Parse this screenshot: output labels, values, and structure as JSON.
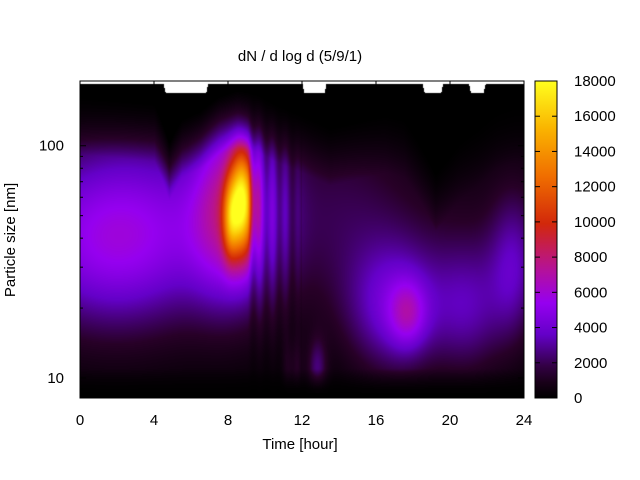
{
  "chart_data": {
    "type": "heatmap",
    "title": "dN / d log d (5/9/1)",
    "xlabel": "Time [hour]",
    "ylabel": "Particle size [nm]",
    "xlim": [
      0,
      24
    ],
    "ylim": [
      8.2,
      190
    ],
    "yscale": "log",
    "x_ticks": [
      0,
      4,
      8,
      12,
      16,
      20,
      24
    ],
    "y_ticks": [
      10,
      100
    ],
    "grid": false,
    "colorbar": {
      "range": [
        0,
        18000
      ],
      "ticks": [
        0,
        2000,
        4000,
        6000,
        8000,
        10000,
        12000,
        14000,
        16000,
        18000
      ],
      "colormap": "black-purple-red-orange-yellow"
    },
    "features": [
      {
        "t": 1.8,
        "d": 38,
        "dt": 3.5,
        "dd": 0.26,
        "value": 3800
      },
      {
        "t": 4.0,
        "d": 60,
        "dt": 5,
        "dd": 0.3,
        "value": 1500
      },
      {
        "t": 8.0,
        "d": 50,
        "dt": 1.4,
        "dd": 0.26,
        "value": 4500
      },
      {
        "t": 8.75,
        "d": 58,
        "dt": 0.45,
        "dd": 0.16,
        "value": 11500
      },
      {
        "t": 8.1,
        "d": 48,
        "dt": 0.3,
        "dd": 0.12,
        "value": 5500
      },
      {
        "t": 8.0,
        "d": 110,
        "dt": 1.1,
        "dd": 0.3,
        "value": 1500
      },
      {
        "t": 10.5,
        "d": 55,
        "dt": 1.0,
        "dd": 0.3,
        "value": 1500
      },
      {
        "t": 12.8,
        "d": 11,
        "dt": 0.35,
        "dd": 0.09,
        "value": 2200
      },
      {
        "t": 11.5,
        "d": 11,
        "dt": 0.35,
        "dd": 0.09,
        "value": 1200
      },
      {
        "t": 17.0,
        "d": 20,
        "dt": 1.8,
        "dd": 0.2,
        "value": 3600
      },
      {
        "t": 17.7,
        "d": 19,
        "dt": 0.7,
        "dd": 0.1,
        "value": 2800
      },
      {
        "t": 21.0,
        "d": 20,
        "dt": 1.4,
        "dd": 0.2,
        "value": 2500
      },
      {
        "t": 23.4,
        "d": 30,
        "dt": 0.9,
        "dd": 0.22,
        "value": 2500
      },
      {
        "t": 14.5,
        "d": 60,
        "dt": 2.5,
        "dd": 0.3,
        "value": 900
      }
    ],
    "background_level": 900,
    "upper_edge": [
      [
        0,
        150
      ],
      [
        2,
        145
      ],
      [
        4,
        140
      ],
      [
        4.8,
        95
      ],
      [
        5.5,
        120
      ],
      [
        6.5,
        130
      ],
      [
        7.5,
        150
      ],
      [
        8.5,
        160
      ],
      [
        9.5,
        155
      ],
      [
        10.5,
        140
      ],
      [
        11.5,
        130
      ],
      [
        12.5,
        120
      ],
      [
        13.5,
        110
      ],
      [
        14.5,
        115
      ],
      [
        15.5,
        120
      ],
      [
        16.5,
        125
      ],
      [
        17.5,
        120
      ],
      [
        18.5,
        90
      ],
      [
        19.2,
        70
      ],
      [
        19.8,
        80
      ],
      [
        20.5,
        95
      ],
      [
        21.5,
        110
      ],
      [
        22.5,
        130
      ],
      [
        23.5,
        140
      ],
      [
        24,
        140
      ]
    ],
    "data_top": [
      [
        0,
        185
      ],
      [
        4.5,
        185
      ],
      [
        4.6,
        170
      ],
      [
        6.8,
        170
      ],
      [
        6.9,
        185
      ],
      [
        12.0,
        185
      ],
      [
        12.1,
        170
      ],
      [
        13.2,
        170
      ],
      [
        13.3,
        185
      ],
      [
        18.5,
        185
      ],
      [
        18.6,
        170
      ],
      [
        19.5,
        170
      ],
      [
        19.6,
        185
      ],
      [
        21.0,
        185
      ],
      [
        21.1,
        170
      ],
      [
        21.8,
        170
      ],
      [
        21.9,
        185
      ],
      [
        24,
        185
      ]
    ]
  }
}
